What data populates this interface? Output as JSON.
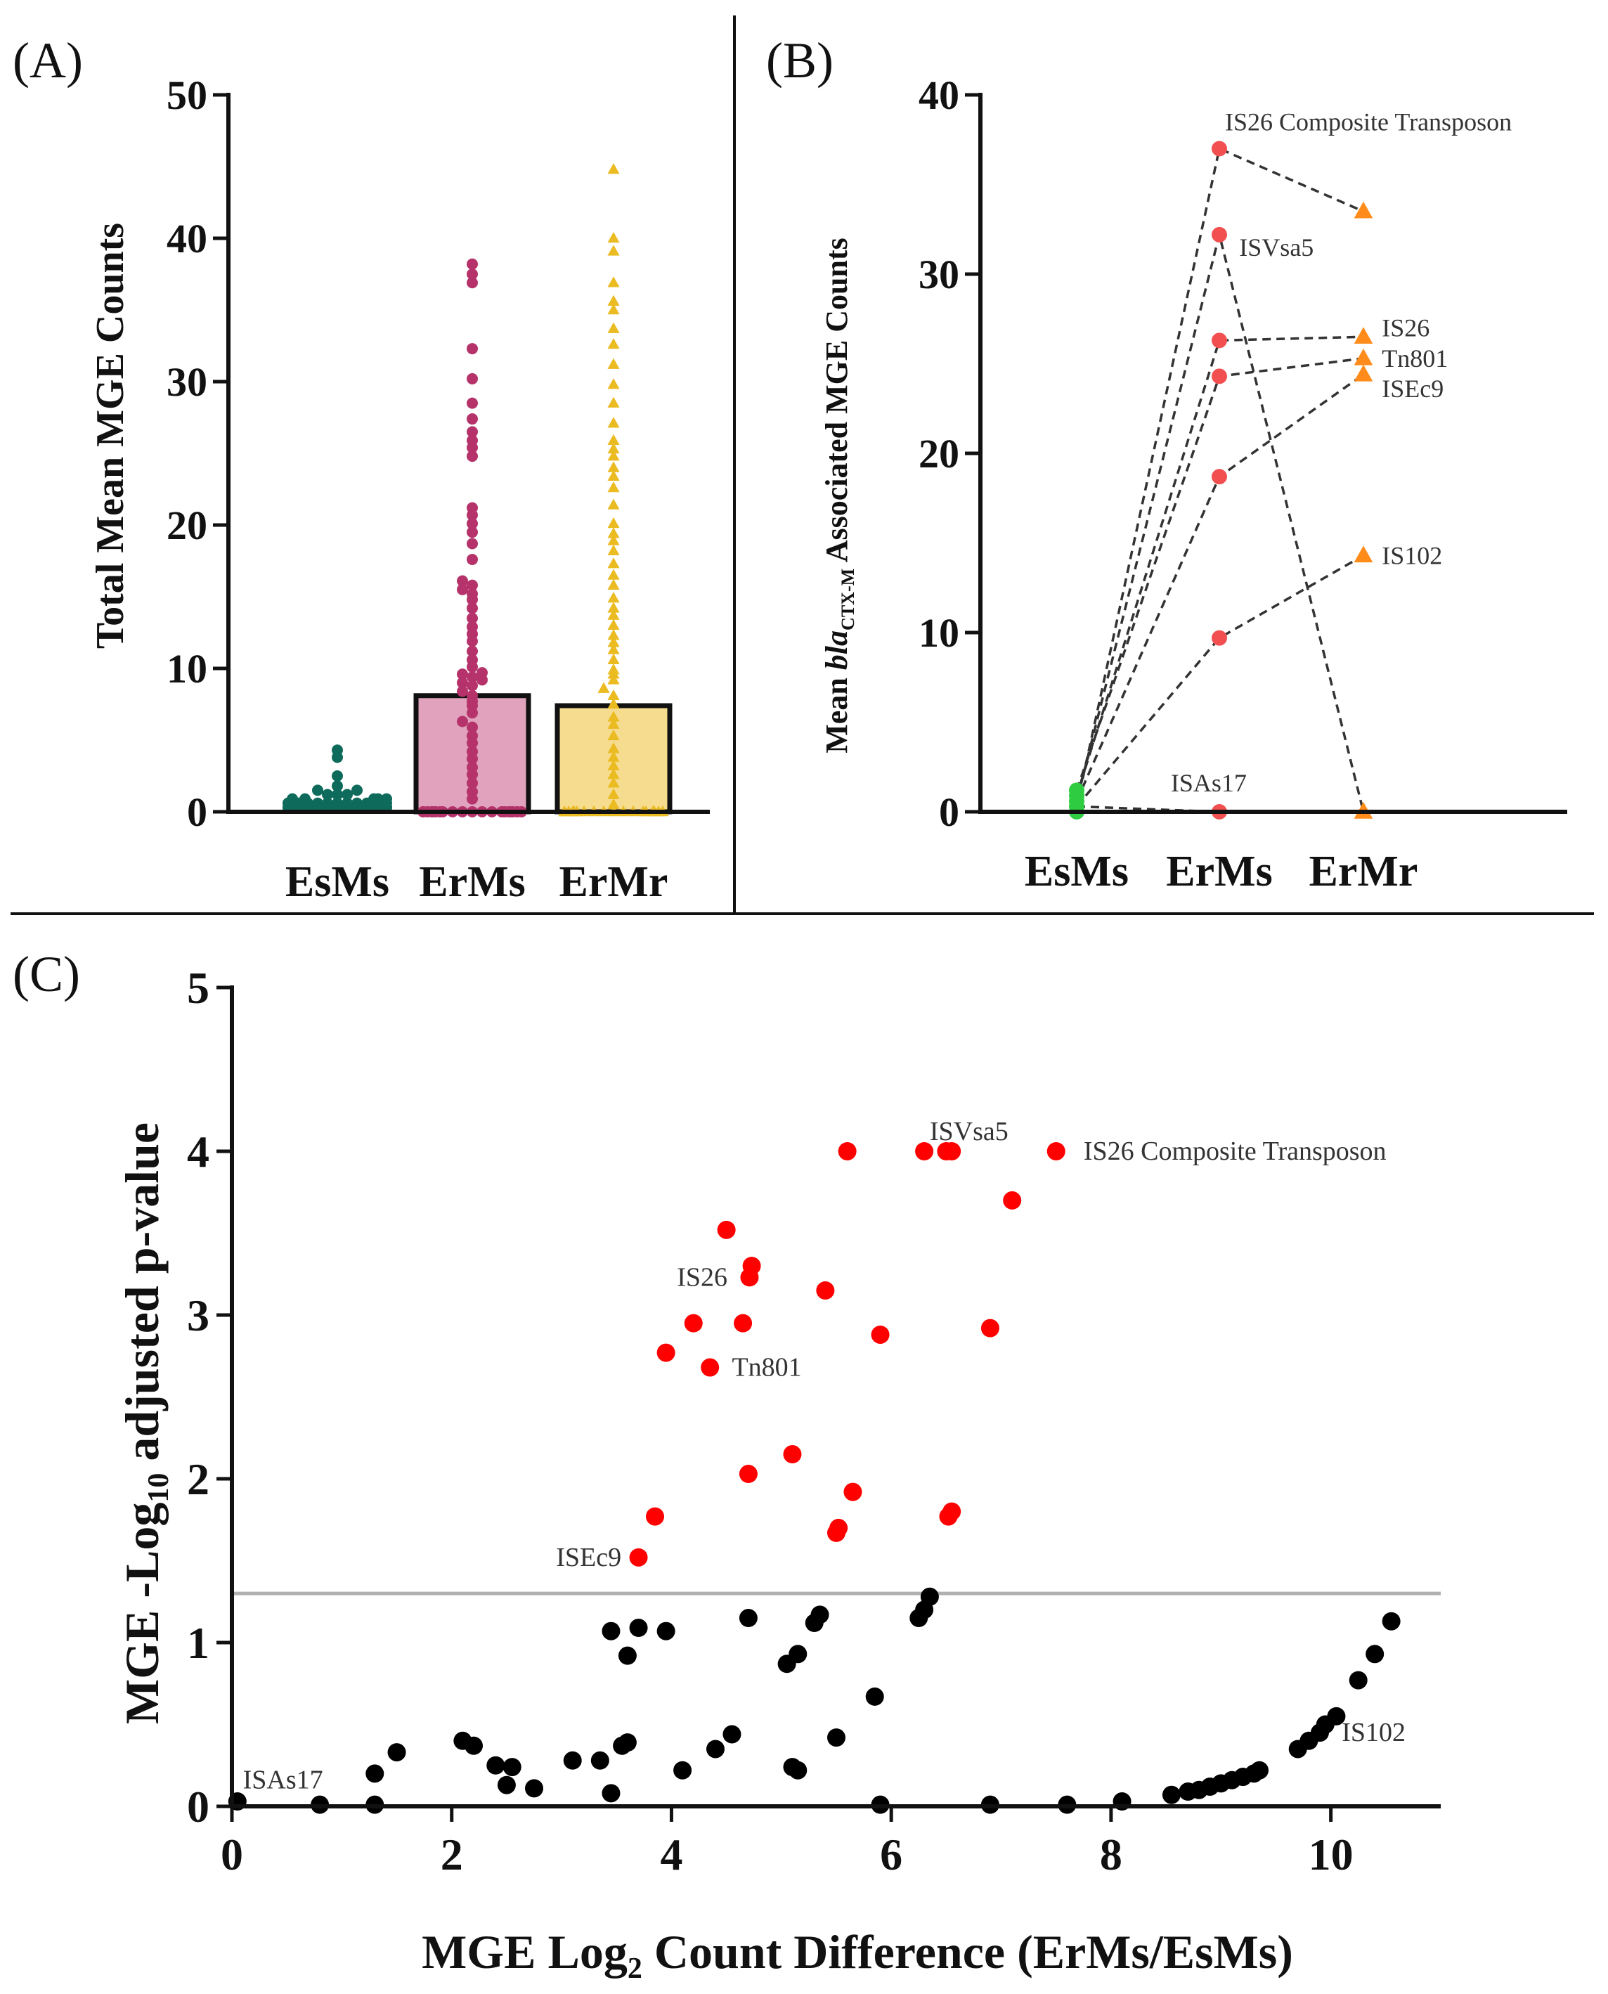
{
  "colors": {
    "esms_teal": "#0E6B5C",
    "erms_magenta": "#B5336A",
    "erms_bar_fill": "#E0A2BC",
    "ermr_gold": "#EBBB22",
    "ermr_bar_fill": "#F6DC8E",
    "panelB_esms": "#2ECC40",
    "panelB_erms": "#F25050",
    "panelB_ermr": "#FF8C1A",
    "sig_red": "#FF0000",
    "nonsig_black": "#000000",
    "threshold_gray": "#B0B0B0"
  },
  "chart_data": [
    {
      "id": "A",
      "type": "bar",
      "panel_label": "(A)",
      "ylabel": "Total Mean MGE Counts",
      "xlabel": "",
      "categories": [
        "EsMs",
        "ErMs",
        "ErMr"
      ],
      "ylim": [
        0,
        50
      ],
      "yticks": [
        "0",
        "10",
        "20",
        "30",
        "40",
        "50"
      ],
      "bar_means": [
        0.5,
        8.1,
        7.4
      ],
      "points": {
        "EsMs": [
          0.3,
          0.3,
          0.3,
          0.3,
          0.3,
          0.3,
          0.3,
          0.3,
          0.3,
          0.3,
          0.3,
          0.3,
          0.3,
          0.3,
          0.3,
          0.3,
          0.3,
          0.3,
          0.3,
          0.3,
          0.3,
          0.3,
          0.6,
          0.6,
          0.6,
          0.6,
          0.6,
          0.6,
          0.6,
          0.6,
          0.6,
          0.6,
          0.6,
          0.6,
          0.6,
          0.6,
          0.6,
          0.6,
          0.6,
          0.6,
          0.9,
          0.9,
          0.9,
          0.9,
          0.9,
          1.2,
          1.2,
          1.2,
          1.5,
          1.5,
          1.8,
          2.5,
          3.8,
          4.3
        ],
        "ErMs": [
          38.2,
          37.5,
          36.9,
          32.3,
          30.2,
          28.5,
          27.4,
          26.5,
          25.9,
          25.4,
          24.8,
          21.2,
          20.7,
          20.1,
          19.5,
          18.7,
          17.6,
          16.1,
          15.8,
          15.5,
          15.2,
          14.8,
          14.2,
          13.5,
          12.9,
          12.4,
          11.9,
          11.2,
          10.6,
          10.1,
          9.7,
          9.6,
          9.4,
          9.2,
          9.0,
          8.8,
          8.4,
          8.1,
          7.7,
          7.4,
          6.9,
          6.3,
          5.9,
          5.3,
          4.8,
          4.2,
          3.7,
          3.1,
          2.6,
          2.0,
          1.4,
          0.9,
          0,
          0,
          0,
          0,
          0,
          0,
          0,
          0,
          0,
          0,
          0,
          0,
          0,
          0,
          0,
          0,
          0,
          0,
          0,
          0
        ],
        "ErMr": [
          44.8,
          40.0,
          39.1,
          36.9,
          35.6,
          35.0,
          33.7,
          32.6,
          31.2,
          29.8,
          28.5,
          27.1,
          25.9,
          25.3,
          24.8,
          24.0,
          23.4,
          22.6,
          21.4,
          20.1,
          19.4,
          18.9,
          18.2,
          17.3,
          16.5,
          15.8,
          14.9,
          14.2,
          13.7,
          13.0,
          12.3,
          11.8,
          11.3,
          10.6,
          9.9,
          9.6,
          9.2,
          8.6,
          8.1,
          7.5,
          6.6,
          6.1,
          5.3,
          4.4,
          3.8,
          3.2,
          2.6,
          2.0,
          1.2,
          0.5,
          0,
          0,
          0,
          0,
          0,
          0,
          0,
          0,
          0,
          0,
          0,
          0,
          0,
          0,
          0,
          0,
          0,
          0
        ]
      }
    },
    {
      "id": "B",
      "type": "line",
      "panel_label": "(B)",
      "ylabel_prefix": "Mean ",
      "ylabel_italic": "bla",
      "ylabel_subscript": "CTX-M",
      "ylabel_suffix": " Associated MGE Counts",
      "categories": [
        "EsMs",
        "ErMs",
        "ErMr"
      ],
      "ylim": [
        0,
        40
      ],
      "yticks": [
        "0",
        "10",
        "20",
        "30",
        "40"
      ],
      "esms_points": [
        0,
        0.3,
        0.6,
        0.9,
        1.2
      ],
      "connections": [
        {
          "esms": 0.3,
          "erms": 37.0,
          "ermr": 33.5
        },
        {
          "esms": 0.6,
          "erms": 32.2,
          "ermr": 0
        },
        {
          "esms": 0.9,
          "erms": 26.3,
          "ermr": 26.5
        },
        {
          "esms": 1.2,
          "erms": 24.3,
          "ermr": 25.3
        },
        {
          "esms": 0.6,
          "erms": 18.7,
          "ermr": 24.4
        },
        {
          "esms": 0.3,
          "erms": 9.7,
          "ermr": 14.3
        },
        {
          "esms": 0.3,
          "erms": 0,
          "ermr": 0
        }
      ],
      "labels": [
        {
          "text": "IS26 Composite Transposon",
          "x_cat": 1.0,
          "y": 38.5
        },
        {
          "text": "ISVsa5",
          "x_cat": 1.1,
          "y": 31.5
        },
        {
          "text": "IS26",
          "x_cat": 2.1,
          "y": 27.0
        },
        {
          "text": "Tn801",
          "x_cat": 2.1,
          "y": 25.3
        },
        {
          "text": "ISEc9",
          "x_cat": 2.1,
          "y": 23.6
        },
        {
          "text": "IS102",
          "x_cat": 2.1,
          "y": 14.3
        },
        {
          "text": "ISAs17",
          "x_cat": 0.62,
          "y": 1.6
        }
      ]
    },
    {
      "id": "C",
      "type": "scatter",
      "panel_label": "(C)",
      "ylabel_prefix": "MGE -Log",
      "ylabel_subscript": "10",
      "ylabel_suffix": " adjusted p-value",
      "xlabel_prefix": "MGE Log",
      "xlabel_subscript": "2",
      "xlabel_suffix": " Count Difference (ErMs/EsMs)",
      "xlim": [
        0,
        11
      ],
      "ylim": [
        0,
        5
      ],
      "xticks": [
        "0",
        "2",
        "4",
        "6",
        "8",
        "10"
      ],
      "yticks": [
        "0",
        "1",
        "2",
        "3",
        "4",
        "5"
      ],
      "threshold": 1.3,
      "significant": [
        [
          5.6,
          4.0
        ],
        [
          6.3,
          4.0
        ],
        [
          6.5,
          4.0
        ],
        [
          6.55,
          4.0
        ],
        [
          7.5,
          4.0
        ],
        [
          7.1,
          3.7
        ],
        [
          4.5,
          3.52
        ],
        [
          4.73,
          3.3
        ],
        [
          4.71,
          3.23
        ],
        [
          5.4,
          3.15
        ],
        [
          4.2,
          2.95
        ],
        [
          4.65,
          2.95
        ],
        [
          6.9,
          2.92
        ],
        [
          5.9,
          2.88
        ],
        [
          3.95,
          2.77
        ],
        [
          4.35,
          2.68
        ],
        [
          5.1,
          2.15
        ],
        [
          4.7,
          2.03
        ],
        [
          5.65,
          1.92
        ],
        [
          6.55,
          1.8
        ],
        [
          6.52,
          1.77
        ],
        [
          3.85,
          1.77
        ],
        [
          5.52,
          1.7
        ],
        [
          5.5,
          1.67
        ],
        [
          3.7,
          1.52
        ]
      ],
      "nonsignificant": [
        [
          0.05,
          0.03
        ],
        [
          0.8,
          0.01
        ],
        [
          1.3,
          0.01
        ],
        [
          1.3,
          0.2
        ],
        [
          1.5,
          0.33
        ],
        [
          2.1,
          0.4
        ],
        [
          2.2,
          0.37
        ],
        [
          2.4,
          0.25
        ],
        [
          2.5,
          0.13
        ],
        [
          2.55,
          0.24
        ],
        [
          2.75,
          0.11
        ],
        [
          3.1,
          0.28
        ],
        [
          3.35,
          0.28
        ],
        [
          3.45,
          0.08
        ],
        [
          3.45,
          1.07
        ],
        [
          3.55,
          0.37
        ],
        [
          3.6,
          0.39
        ],
        [
          3.6,
          0.92
        ],
        [
          3.7,
          1.09
        ],
        [
          3.95,
          1.07
        ],
        [
          4.1,
          0.22
        ],
        [
          4.4,
          0.35
        ],
        [
          4.55,
          0.44
        ],
        [
          4.7,
          1.15
        ],
        [
          5.05,
          0.87
        ],
        [
          5.1,
          0.24
        ],
        [
          5.15,
          0.93
        ],
        [
          5.15,
          0.22
        ],
        [
          5.3,
          1.12
        ],
        [
          5.35,
          1.17
        ],
        [
          5.5,
          0.42
        ],
        [
          5.85,
          0.67
        ],
        [
          5.9,
          0.01
        ],
        [
          6.25,
          1.15
        ],
        [
          6.3,
          1.2
        ],
        [
          6.35,
          1.28
        ],
        [
          6.9,
          0.01
        ],
        [
          7.6,
          0.01
        ],
        [
          8.1,
          0.03
        ],
        [
          8.55,
          0.07
        ],
        [
          8.7,
          0.09
        ],
        [
          8.8,
          0.1
        ],
        [
          8.9,
          0.12
        ],
        [
          9.0,
          0.14
        ],
        [
          9.1,
          0.16
        ],
        [
          9.2,
          0.18
        ],
        [
          9.3,
          0.2
        ],
        [
          9.35,
          0.22
        ],
        [
          9.7,
          0.35
        ],
        [
          9.8,
          0.4
        ],
        [
          9.9,
          0.45
        ],
        [
          9.95,
          0.5
        ],
        [
          10.05,
          0.55
        ],
        [
          10.25,
          0.77
        ],
        [
          10.4,
          0.93
        ],
        [
          10.55,
          1.13
        ]
      ],
      "labels": [
        {
          "text": "ISVsa5",
          "x": 6.35,
          "y": 4.12
        },
        {
          "text": "IS26 Composite Transposon",
          "x": 7.75,
          "y": 4.0
        },
        {
          "text": "IS26",
          "x": 4.05,
          "y": 3.23
        },
        {
          "text": "Tn801",
          "x": 4.55,
          "y": 2.68
        },
        {
          "text": "ISEc9",
          "x": 2.95,
          "y": 1.52
        },
        {
          "text": "IS102",
          "x": 10.1,
          "y": 0.45
        },
        {
          "text": "ISAs17",
          "x": 0.1,
          "y": 0.16
        }
      ]
    }
  ]
}
